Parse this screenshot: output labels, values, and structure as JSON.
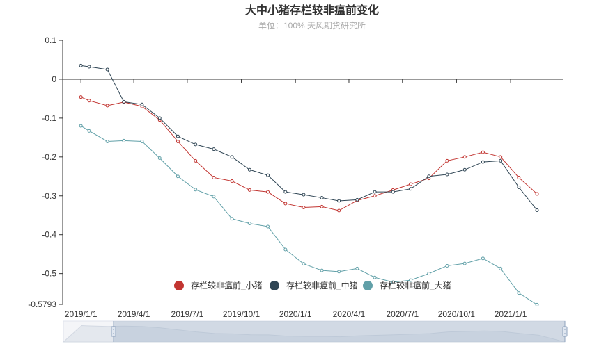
{
  "chart_data": {
    "type": "line",
    "title": "大中小猪存栏较非瘟前变化",
    "subtitle": "单位：100%  天风期货研究所",
    "x_tick_labels": [
      "2019/1/1",
      "2019/4/1",
      "2019/7/1",
      "2019/10/1",
      "2020/1/1",
      "2020/4/1",
      "2020/7/1",
      "2020/10/1",
      "2021/1/1"
    ],
    "y_tick_labels": [
      "0.1",
      "0",
      "-0.1",
      "-0.2",
      "-0.3",
      "-0.4",
      "-0.5",
      "-0.5793"
    ],
    "ylim": [
      -0.5793,
      0.1
    ],
    "x": [
      "2018-12-01",
      "2018-12-15",
      "2019-01-01",
      "2019-01-15",
      "2019-02-01",
      "2019-02-15",
      "2019-03-01",
      "2019-03-15",
      "2019-04-01",
      "2019-04-15",
      "2019-05-01",
      "2019-05-15",
      "2019-06-01",
      "2019-06-15",
      "2019-07-01",
      "2019-07-15",
      "2019-08-01",
      "2019-08-15",
      "2019-09-01",
      "2019-09-15",
      "2019-10-01",
      "2019-10-15",
      "2019-11-01",
      "2019-11-15",
      "2019-12-01",
      "2019-12-15",
      "2020-01-01",
      "2020-01-15",
      "2020-02-01",
      "2020-02-15",
      "2020-03-01",
      "2020-03-15",
      "2020-04-01",
      "2020-04-15",
      "2020-05-01",
      "2020-05-15",
      "2020-06-01",
      "2020-06-15",
      "2020-07-01",
      "2020-07-15",
      "2020-08-01",
      "2020-08-15",
      "2020-09-01",
      "2020-09-15",
      "2020-10-01",
      "2020-10-15",
      "2020-11-01",
      "2020-11-15",
      "2020-12-01",
      "2020-12-15",
      "2021-01-01",
      "2021-01-15",
      "2021-02-01",
      "2021-02-15",
      "2021-03-01",
      "2021-03-15",
      "2021-04-01"
    ],
    "series": [
      {
        "name": "存栏较非瘟前_小猪",
        "color": "#c23531",
        "points": [
          [
            "2019-01-01",
            -0.046
          ],
          [
            "2019-01-15",
            -0.055
          ],
          [
            "2019-02-15",
            -0.068
          ],
          [
            "2019-03-15",
            -0.059
          ],
          [
            "2019-04-15",
            -0.07
          ],
          [
            "2019-05-15",
            -0.105
          ],
          [
            "2019-06-15",
            -0.16
          ],
          [
            "2019-07-15",
            -0.21
          ],
          [
            "2019-08-15",
            -0.253
          ],
          [
            "2019-09-15",
            -0.262
          ],
          [
            "2019-10-15",
            -0.285
          ],
          [
            "2019-11-15",
            -0.29
          ],
          [
            "2019-12-15",
            -0.32
          ],
          [
            "2020-01-15",
            -0.33
          ],
          [
            "2020-02-15",
            -0.328
          ],
          [
            "2020-03-15",
            -0.338
          ],
          [
            "2020-04-15",
            -0.312
          ],
          [
            "2020-05-15",
            -0.3
          ],
          [
            "2020-06-15",
            -0.285
          ],
          [
            "2020-07-15",
            -0.27
          ],
          [
            "2020-08-15",
            -0.255
          ],
          [
            "2020-09-15",
            -0.21
          ],
          [
            "2020-10-15",
            -0.2
          ],
          [
            "2020-11-15",
            -0.188
          ],
          [
            "2020-12-15",
            -0.2
          ],
          [
            "2021-01-15",
            -0.253
          ],
          [
            "2021-02-15",
            -0.295
          ]
        ]
      },
      {
        "name": "存栏较非瘟前_中猪",
        "color": "#2f4554",
        "points": [
          [
            "2019-01-01",
            0.035
          ],
          [
            "2019-01-15",
            0.032
          ],
          [
            "2019-02-15",
            0.025
          ],
          [
            "2019-03-15",
            -0.058
          ],
          [
            "2019-04-15",
            -0.065
          ],
          [
            "2019-05-15",
            -0.1
          ],
          [
            "2019-06-15",
            -0.147
          ],
          [
            "2019-07-15",
            -0.168
          ],
          [
            "2019-08-15",
            -0.18
          ],
          [
            "2019-09-15",
            -0.2
          ],
          [
            "2019-10-15",
            -0.233
          ],
          [
            "2019-11-15",
            -0.247
          ],
          [
            "2019-12-15",
            -0.29
          ],
          [
            "2020-01-15",
            -0.297
          ],
          [
            "2020-02-15",
            -0.305
          ],
          [
            "2020-03-15",
            -0.313
          ],
          [
            "2020-04-15",
            -0.31
          ],
          [
            "2020-05-15",
            -0.29
          ],
          [
            "2020-06-15",
            -0.29
          ],
          [
            "2020-07-15",
            -0.282
          ],
          [
            "2020-08-15",
            -0.25
          ],
          [
            "2020-09-15",
            -0.245
          ],
          [
            "2020-10-15",
            -0.233
          ],
          [
            "2020-11-15",
            -0.213
          ],
          [
            "2020-12-15",
            -0.21
          ],
          [
            "2021-01-15",
            -0.278
          ],
          [
            "2021-02-15",
            -0.337
          ]
        ]
      },
      {
        "name": "存栏较非瘟前_大猪",
        "color": "#61a0a8",
        "points": [
          [
            "2019-01-01",
            -0.12
          ],
          [
            "2019-01-15",
            -0.133
          ],
          [
            "2019-02-15",
            -0.16
          ],
          [
            "2019-03-15",
            -0.158
          ],
          [
            "2019-04-15",
            -0.16
          ],
          [
            "2019-05-15",
            -0.203
          ],
          [
            "2019-06-15",
            -0.25
          ],
          [
            "2019-07-15",
            -0.284
          ],
          [
            "2019-08-15",
            -0.302
          ],
          [
            "2019-09-15",
            -0.359
          ],
          [
            "2019-10-15",
            -0.371
          ],
          [
            "2019-11-15",
            -0.379
          ],
          [
            "2019-12-15",
            -0.438
          ],
          [
            "2020-01-15",
            -0.475
          ],
          [
            "2020-02-15",
            -0.492
          ],
          [
            "2020-03-15",
            -0.495
          ],
          [
            "2020-04-15",
            -0.487
          ],
          [
            "2020-05-15",
            -0.51
          ],
          [
            "2020-06-15",
            -0.522
          ],
          [
            "2020-07-15",
            -0.517
          ],
          [
            "2020-08-15",
            -0.5
          ],
          [
            "2020-09-15",
            -0.48
          ],
          [
            "2020-10-15",
            -0.474
          ],
          [
            "2020-11-15",
            -0.461
          ],
          [
            "2020-12-15",
            -0.487
          ],
          [
            "2021-01-15",
            -0.55
          ],
          [
            "2021-02-15",
            -0.58
          ]
        ]
      }
    ],
    "legend_position": "bottom-right",
    "grid": false
  },
  "data_zoom": {
    "range_start_pct": 10,
    "range_end_pct": 100
  }
}
